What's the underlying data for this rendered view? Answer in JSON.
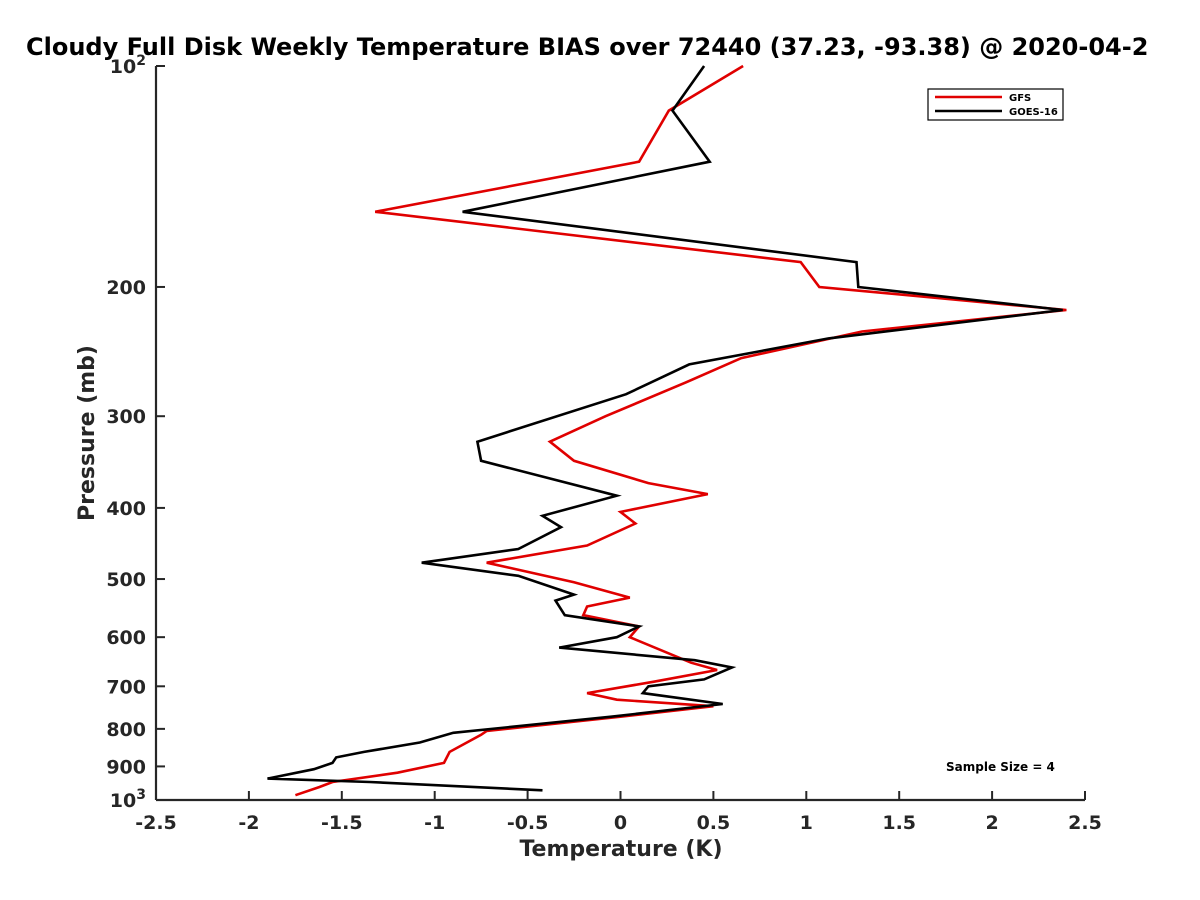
{
  "chart_data": {
    "type": "line",
    "title": "Cloudy Full Disk Weekly Temperature BIAS over 72440 (37.23, -93.38) @ 2020-04-2",
    "xlabel": "Temperature (K)",
    "ylabel": "Pressure (mb)",
    "xlim": [
      -2.5,
      2.5
    ],
    "ylim": [
      100,
      1000
    ],
    "y_scale": "log",
    "y_reversed": true,
    "grid": false,
    "legend_position": "top-right",
    "x_ticks": [
      "-2.5",
      "-2",
      "-1.5",
      "-1",
      "-0.5",
      "0",
      "0.5",
      "1",
      "1.5",
      "2",
      "2.5"
    ],
    "x_tick_values": [
      -2.5,
      -2,
      -1.5,
      -1,
      -0.5,
      0,
      0.5,
      1,
      1.5,
      2,
      2.5
    ],
    "y_ticks": [
      {
        "value": 100,
        "base": "10",
        "exp": "2",
        "text": ""
      },
      {
        "value": 200,
        "text": "200"
      },
      {
        "value": 300,
        "text": "300"
      },
      {
        "value": 400,
        "text": "400"
      },
      {
        "value": 500,
        "text": "500"
      },
      {
        "value": 600,
        "text": "600"
      },
      {
        "value": 700,
        "text": "700"
      },
      {
        "value": 800,
        "text": "800"
      },
      {
        "value": 900,
        "text": "900"
      },
      {
        "value": 1000,
        "base": "10",
        "exp": "3",
        "text": ""
      }
    ],
    "series": [
      {
        "name": "GFS",
        "color": "#e00000",
        "points": [
          [
            0.66,
            100
          ],
          [
            0.26,
            115
          ],
          [
            0.1,
            135
          ],
          [
            -1.32,
            158
          ],
          [
            0.97,
            185
          ],
          [
            1.07,
            200
          ],
          [
            2.4,
            215
          ],
          [
            1.3,
            230
          ],
          [
            0.65,
            250
          ],
          [
            0.35,
            270
          ],
          [
            -0.08,
            300
          ],
          [
            -0.38,
            325
          ],
          [
            -0.25,
            345
          ],
          [
            0.15,
            370
          ],
          [
            0.47,
            383
          ],
          [
            0.0,
            405
          ],
          [
            0.08,
            420
          ],
          [
            -0.18,
            450
          ],
          [
            -0.72,
            475
          ],
          [
            -0.25,
            505
          ],
          [
            0.05,
            530
          ],
          [
            -0.18,
            545
          ],
          [
            -0.2,
            560
          ],
          [
            0.1,
            580
          ],
          [
            0.05,
            600
          ],
          [
            0.38,
            650
          ],
          [
            0.52,
            665
          ],
          [
            0.18,
            690
          ],
          [
            -0.18,
            715
          ],
          [
            -0.02,
            730
          ],
          [
            0.5,
            745
          ],
          [
            0.0,
            770
          ],
          [
            -0.72,
            805
          ],
          [
            -0.75,
            815
          ],
          [
            -0.92,
            860
          ],
          [
            -0.95,
            890
          ],
          [
            -1.2,
            918
          ],
          [
            -1.55,
            945
          ],
          [
            -1.62,
            960
          ],
          [
            -1.75,
            985
          ]
        ]
      },
      {
        "name": "GOES-16",
        "color": "#000000",
        "points": [
          [
            0.45,
            100
          ],
          [
            0.28,
            115
          ],
          [
            0.48,
            135
          ],
          [
            -0.85,
            158
          ],
          [
            1.27,
            185
          ],
          [
            1.28,
            200
          ],
          [
            2.38,
            215
          ],
          [
            1.12,
            235
          ],
          [
            0.37,
            255
          ],
          [
            0.03,
            280
          ],
          [
            -0.77,
            325
          ],
          [
            -0.75,
            345
          ],
          [
            -0.02,
            385
          ],
          [
            -0.42,
            410
          ],
          [
            -0.32,
            425
          ],
          [
            -0.55,
            455
          ],
          [
            -1.07,
            475
          ],
          [
            -0.55,
            495
          ],
          [
            -0.25,
            525
          ],
          [
            -0.35,
            535
          ],
          [
            -0.3,
            560
          ],
          [
            0.1,
            580
          ],
          [
            -0.02,
            600
          ],
          [
            -0.33,
            620
          ],
          [
            0.4,
            645
          ],
          [
            0.6,
            660
          ],
          [
            0.45,
            685
          ],
          [
            0.15,
            700
          ],
          [
            0.12,
            715
          ],
          [
            0.55,
            740
          ],
          [
            -0.05,
            770
          ],
          [
            -0.9,
            810
          ],
          [
            -1.08,
            835
          ],
          [
            -1.38,
            860
          ],
          [
            -1.53,
            875
          ],
          [
            -1.55,
            890
          ],
          [
            -1.65,
            908
          ],
          [
            -1.9,
            935
          ],
          [
            -1.35,
            945
          ],
          [
            -0.42,
            970
          ]
        ]
      }
    ],
    "annotation": "Sample Size = 4"
  }
}
